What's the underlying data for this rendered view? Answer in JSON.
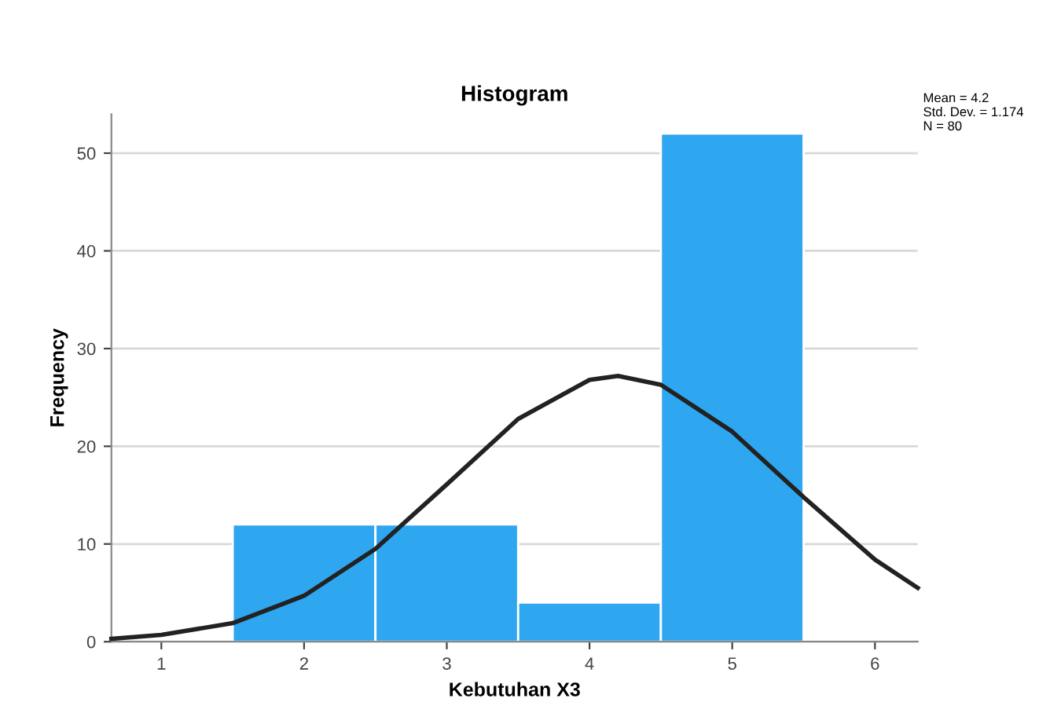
{
  "chart_data": {
    "type": "histogram",
    "title": "Histogram",
    "xlabel": "Kebutuhan X3",
    "ylabel": "Frequency",
    "bins": [
      1.5,
      2.5,
      3.5,
      4.5,
      5.5
    ],
    "values": [
      12,
      12,
      4,
      52
    ],
    "color": "#2ea6f0",
    "series": [
      {
        "type": "line",
        "color": "#222222",
        "x": [
          0.65,
          1.0,
          1.5,
          2.0,
          2.5,
          3.0,
          3.5,
          4.0,
          4.2,
          4.5,
          5.0,
          5.5,
          6.0,
          6.3
        ],
        "values": [
          0.3,
          0.7,
          1.9,
          4.7,
          9.5,
          16.1,
          22.8,
          26.8,
          27.2,
          26.3,
          21.5,
          14.8,
          8.4,
          5.5
        ]
      }
    ],
    "xlim": [
      0.65,
      6.3
    ],
    "xticks": [
      1,
      2,
      3,
      4,
      5,
      6
    ],
    "ylim": [
      0,
      54
    ],
    "yticks": [
      0,
      10,
      20,
      30,
      40,
      50
    ],
    "grid": "y",
    "annotations": [
      "Mean = 4.2\nStd. Dev. = 1.174\nN = 80"
    ]
  }
}
